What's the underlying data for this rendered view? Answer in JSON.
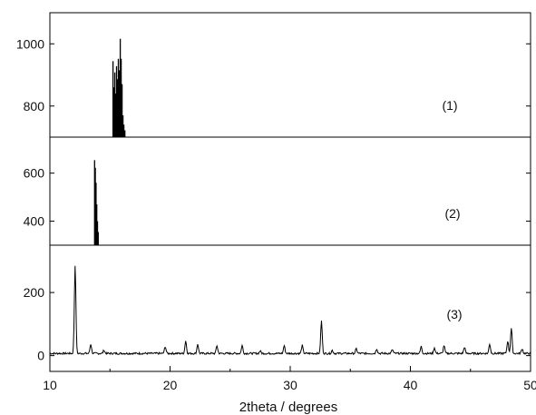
{
  "chart_data": {
    "type": "line",
    "title": "",
    "xlabel": "2theta / degrees",
    "ylabel": "",
    "xlim": [
      10,
      50
    ],
    "xticks": [
      "10",
      "20",
      "30",
      "40",
      "50"
    ],
    "grid": false,
    "legend": "none",
    "line_color": "#000000",
    "panels": [
      {
        "label": "(1)",
        "ylim": [
          700,
          1100
        ],
        "yticks": [
          "800",
          "1000"
        ],
        "peaks": [
          {
            "x": 15.25,
            "y": 944
          },
          {
            "x": 15.32,
            "y": 860
          },
          {
            "x": 15.4,
            "y": 908
          },
          {
            "x": 15.47,
            "y": 840
          },
          {
            "x": 15.55,
            "y": 928
          },
          {
            "x": 15.62,
            "y": 886
          },
          {
            "x": 15.7,
            "y": 952
          },
          {
            "x": 15.78,
            "y": 915
          },
          {
            "x": 15.86,
            "y": 1016
          },
          {
            "x": 15.93,
            "y": 952
          },
          {
            "x": 16.01,
            "y": 870
          },
          {
            "x": 16.08,
            "y": 770
          },
          {
            "x": 16.16,
            "y": 740
          },
          {
            "x": 16.24,
            "y": 722
          }
        ]
      },
      {
        "label": "(2)",
        "ylim": [
          300,
          750
        ],
        "yticks": [
          "400",
          "600"
        ],
        "peaks": [
          {
            "x": 13.72,
            "y": 654
          },
          {
            "x": 13.78,
            "y": 622
          },
          {
            "x": 13.84,
            "y": 560
          },
          {
            "x": 13.9,
            "y": 470
          },
          {
            "x": 13.96,
            "y": 400
          },
          {
            "x": 14.02,
            "y": 355
          }
        ]
      },
      {
        "label": "(3)",
        "ylim": [
          -50,
          350
        ],
        "yticks": [
          "0",
          "200"
        ],
        "peaks": [
          {
            "x": 12.1,
            "y": 280
          },
          {
            "x": 13.4,
            "y": 30
          },
          {
            "x": 14.5,
            "y": 10
          },
          {
            "x": 19.6,
            "y": 22
          },
          {
            "x": 21.3,
            "y": 40
          },
          {
            "x": 22.3,
            "y": 30
          },
          {
            "x": 23.9,
            "y": 25
          },
          {
            "x": 26.0,
            "y": 25
          },
          {
            "x": 27.5,
            "y": 8
          },
          {
            "x": 29.5,
            "y": 25
          },
          {
            "x": 31.0,
            "y": 25
          },
          {
            "x": 32.6,
            "y": 103
          },
          {
            "x": 33.5,
            "y": 10
          },
          {
            "x": 35.5,
            "y": 15
          },
          {
            "x": 37.2,
            "y": 15
          },
          {
            "x": 38.5,
            "y": 12
          },
          {
            "x": 40.9,
            "y": 22
          },
          {
            "x": 42.0,
            "y": 18
          },
          {
            "x": 42.8,
            "y": 25
          },
          {
            "x": 44.5,
            "y": 20
          },
          {
            "x": 46.6,
            "y": 30
          },
          {
            "x": 48.1,
            "y": 40
          },
          {
            "x": 48.4,
            "y": 80
          },
          {
            "x": 49.3,
            "y": 15
          }
        ]
      }
    ]
  }
}
